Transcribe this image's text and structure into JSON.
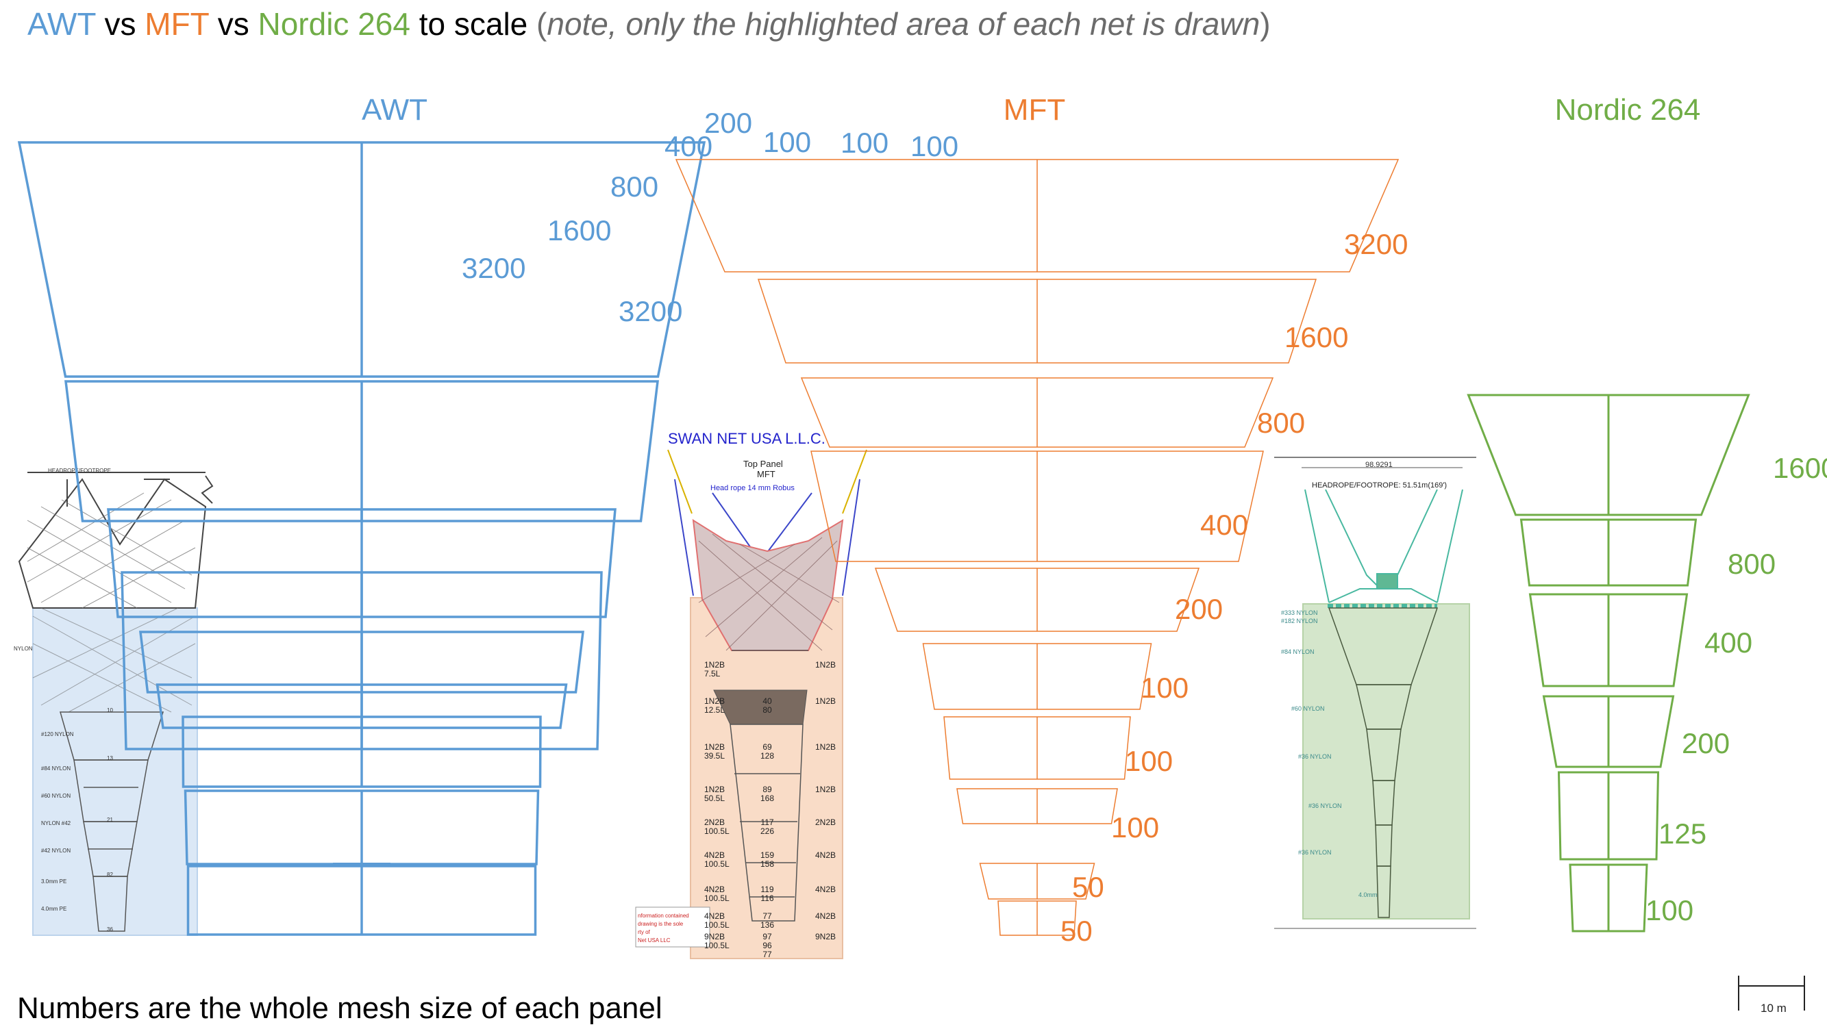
{
  "colors": {
    "awt": "#5b9bd5",
    "mft": "#ed7d31",
    "nordic": "#70ad47"
  },
  "title": {
    "awt": "AWT",
    "vs1": " vs ",
    "mft": "MFT",
    "vs2": " vs ",
    "nordic": "Nordic 264",
    "to_scale": " to scale ",
    "open": "(",
    "note": "note, only the highlighted area of each net is drawn",
    "close": ")"
  },
  "nets": {
    "awt": {
      "name": "AWT",
      "mesh_labels": [
        "3200",
        "3200",
        "1600",
        "800",
        "400",
        "200",
        "100",
        "100",
        "100"
      ]
    },
    "mft": {
      "name": "MFT",
      "mesh_labels": [
        "3200",
        "1600",
        "800",
        "400",
        "200",
        "100",
        "100",
        "100",
        "50",
        "50"
      ]
    },
    "nordic": {
      "name": "Nordic 264",
      "mesh_labels": [
        "1600",
        "800",
        "400",
        "200",
        "125",
        "100"
      ]
    }
  },
  "mft_drawing": {
    "company": "SWAN NET USA L.L.C.",
    "panel": "Top Panel",
    "net": "MFT",
    "headrope": "Head rope 14 mm Robus",
    "rows": [
      {
        "left": "1N2B\n7.5L",
        "mid": "",
        "right": "1N2B"
      },
      {
        "left": "1N2B\n12.5L",
        "mid": "40\n80",
        "right": "1N2B"
      },
      {
        "left": "1N2B\n39.5L",
        "mid": "69\n128",
        "right": "1N2B"
      },
      {
        "left": "1N2B\n50.5L",
        "mid": "89\n168",
        "right": "1N2B"
      },
      {
        "left": "2N2B\n100.5L",
        "mid": "117\n226",
        "right": "2N2B"
      },
      {
        "left": "4N2B\n100.5L",
        "mid": "159\n158",
        "right": "4N2B"
      },
      {
        "left": "4N2B\n100.5L",
        "mid": "119\n116",
        "right": "4N2B"
      },
      {
        "left": "4N2B\n100.5L",
        "mid": "77\n136",
        "right": "4N2B"
      },
      {
        "left": "9N2B\n100.5L",
        "mid": "97\n96\n77",
        "right": "9N2B"
      }
    ]
  },
  "nordic_drawing": {
    "dimension": "98.9291",
    "headrope": "HEADROPE/FOOTROPE:  51.51m(169')"
  },
  "footnote": "Numbers are the whole mesh size of each panel",
  "scale_bar": "10 m"
}
